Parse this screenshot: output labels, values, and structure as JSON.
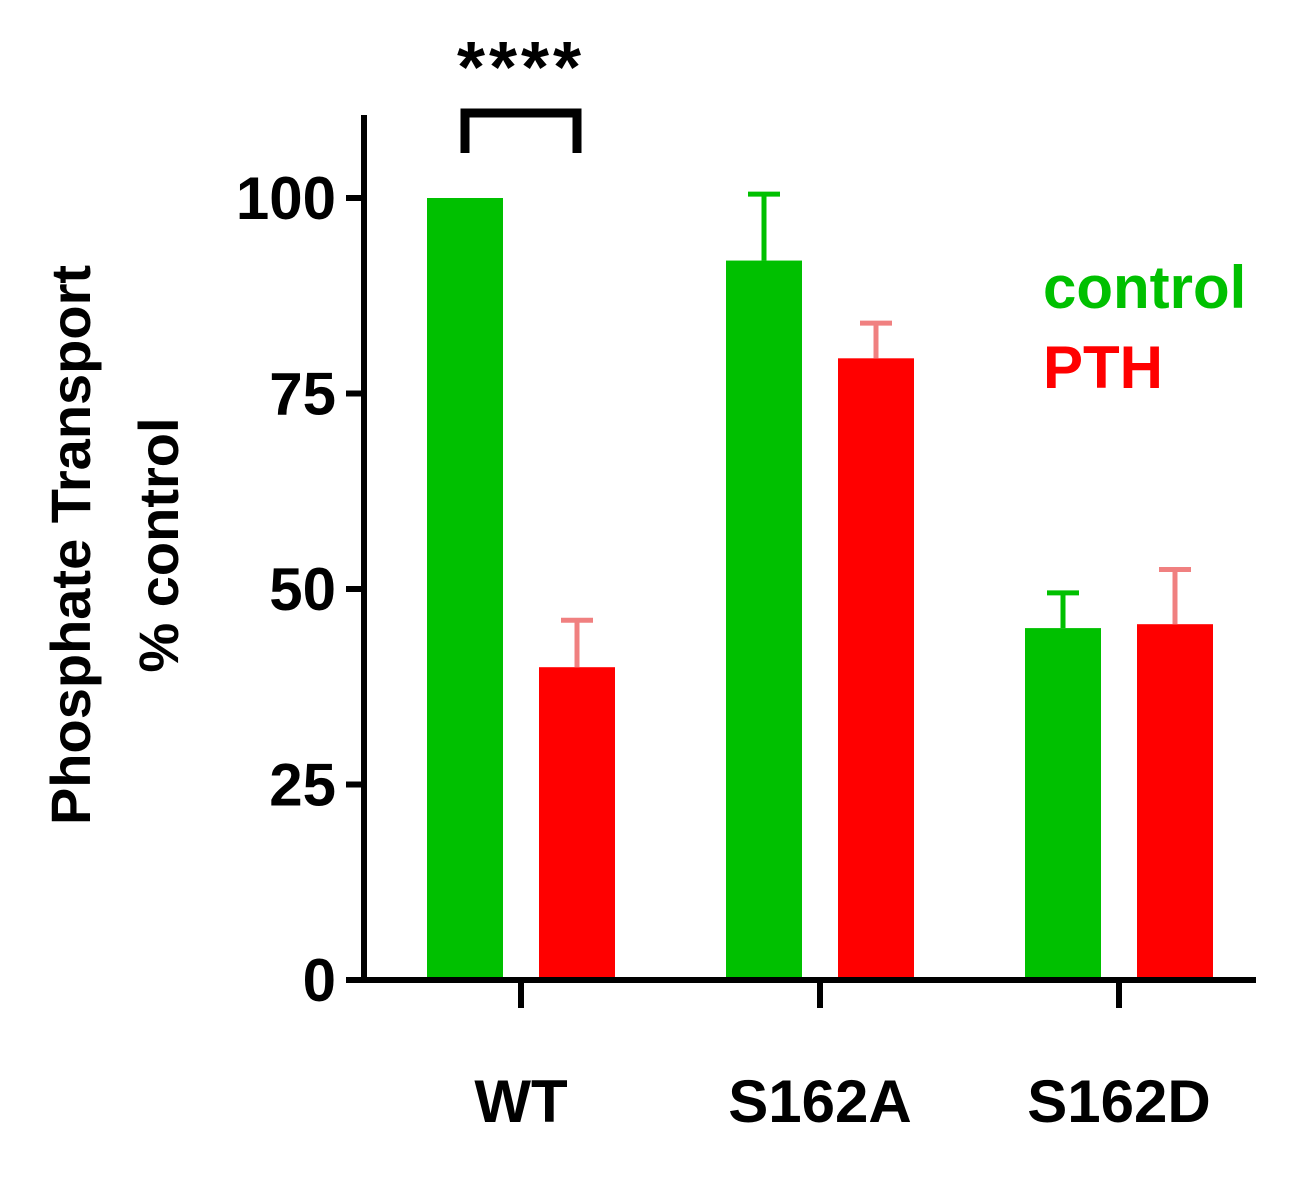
{
  "chart_data": {
    "type": "bar",
    "title": "",
    "xlabel": "",
    "ylabel": [
      "Phosphate Transport",
      "% control"
    ],
    "ylim": [
      0,
      110
    ],
    "yticks": [
      0,
      25,
      50,
      75,
      100
    ],
    "ytick_labels": [
      "0",
      "25",
      "50",
      "75",
      "100"
    ],
    "grid": false,
    "legend_position": "right",
    "categories": [
      "WT",
      "S162A",
      "S162D"
    ],
    "series": [
      {
        "name": "control",
        "color": "#00c000",
        "error_color": "#00c000",
        "values": [
          100,
          92,
          45
        ],
        "errors": [
          0,
          8.5,
          4.5
        ]
      },
      {
        "name": "PTH",
        "color": "#ff0000",
        "error_color": "#f08080",
        "values": [
          40,
          79.5,
          45.5
        ],
        "errors": [
          6,
          4.5,
          7
        ]
      }
    ],
    "annotations": [
      {
        "label": "****",
        "category": "WT",
        "comparison": [
          "control",
          "PTH"
        ]
      }
    ]
  }
}
